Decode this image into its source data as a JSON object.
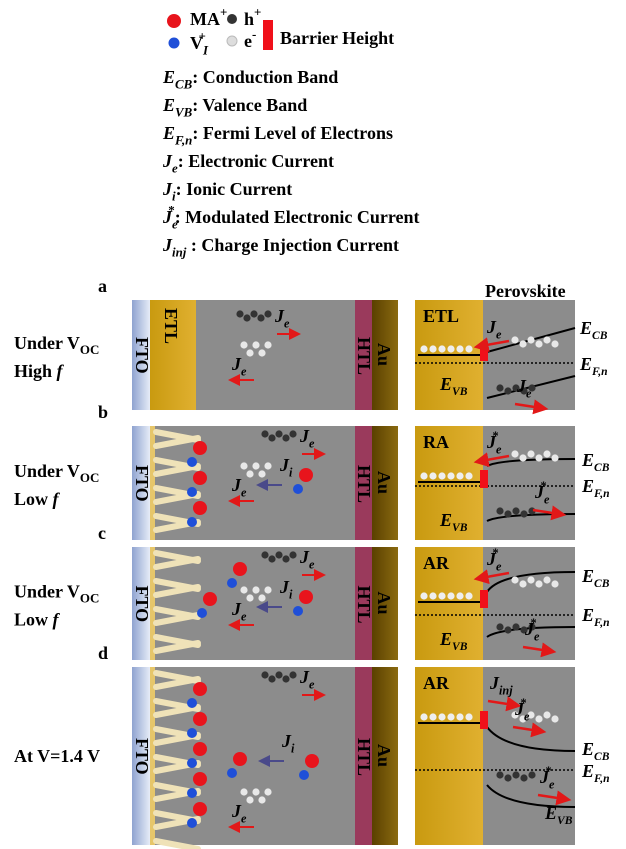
{
  "legend": {
    "ma": {
      "main": "MA",
      "sup": "+"
    },
    "vi": {
      "main": "V",
      "sub": "I",
      "sup": "+"
    },
    "hole": {
      "main": "h",
      "sup": "+"
    },
    "electron": {
      "main": "e",
      "sup": "-"
    },
    "barrier": "Barrier Height"
  },
  "definitions": [
    {
      "main": "E",
      "sub": "CB",
      "text": ": Conduction Band"
    },
    {
      "main": "E",
      "sub": "VB",
      "text": ": Valence Band"
    },
    {
      "main": "E",
      "sub": "F,n",
      "text": ": Fermi Level of Electrons"
    },
    {
      "main": "J",
      "sub": "e",
      "text": ": Electronic Current"
    },
    {
      "main": "J",
      "sub": "i",
      "text": ": Ionic Current"
    },
    {
      "main": "J",
      "sub": "e",
      "sup": "*",
      "text": ": Modulated Electronic Current"
    },
    {
      "main": "J",
      "sub": "inj",
      "text": " : Charge Injection Current"
    }
  ],
  "perovskite": "Perovskite",
  "panels": [
    {
      "letter": "a",
      "condition": {
        "line1": "Under V",
        "line1_sub": "OC",
        "line2": "High ",
        "line2_italic": "f"
      },
      "layers": {
        "fto": "FTO",
        "etl": "ETL",
        "htl": "HTL",
        "au": "Au"
      },
      "device_currents": [
        {
          "main": "J",
          "sub": "e"
        },
        {
          "main": "J",
          "sub": "e"
        }
      ],
      "contact": "ETL",
      "band_currents": [
        {
          "main": "J",
          "sub": "e"
        },
        {
          "main": "J",
          "sub": "e"
        }
      ],
      "levels": {
        "cb": {
          "main": "E",
          "sub": "CB"
        },
        "fn": {
          "main": "E",
          "sub": "F,n"
        },
        "vb": {
          "main": "E",
          "sub": "VB"
        }
      }
    },
    {
      "letter": "b",
      "condition": {
        "line1": "Under V",
        "line1_sub": "OC",
        "line2": "Low ",
        "line2_italic": "f"
      },
      "layers": {
        "fto": "FTO",
        "htl": "HTL",
        "au": "Au"
      },
      "device_currents": [
        {
          "main": "J",
          "sub": "e"
        },
        {
          "main": "J",
          "sub": "i"
        },
        {
          "main": "J",
          "sub": "e"
        }
      ],
      "contact": "RA",
      "band_currents": [
        {
          "main": "J",
          "sub": "e",
          "sup": "*"
        },
        {
          "main": "J",
          "sub": "e",
          "sup": "*"
        }
      ],
      "levels": {
        "cb": {
          "main": "E",
          "sub": "CB"
        },
        "fn": {
          "main": "E",
          "sub": "F,n"
        },
        "vb": {
          "main": "E",
          "sub": "VB"
        }
      }
    },
    {
      "letter": "c",
      "condition": {
        "line1": "Under V",
        "line1_sub": "OC",
        "line2": "Low ",
        "line2_italic": "f"
      },
      "layers": {
        "fto": "FTO",
        "htl": "HTL",
        "au": "Au"
      },
      "device_currents": [
        {
          "main": "J",
          "sub": "e"
        },
        {
          "main": "J",
          "sub": "i"
        },
        {
          "main": "J",
          "sub": "e"
        }
      ],
      "contact": "AR",
      "band_currents": [
        {
          "main": "J",
          "sub": "e",
          "sup": "*"
        },
        {
          "main": "J",
          "sub": "e",
          "sup": "*"
        }
      ],
      "levels": {
        "cb": {
          "main": "E",
          "sub": "CB"
        },
        "fn": {
          "main": "E",
          "sub": "F,n"
        },
        "vb": {
          "main": "E",
          "sub": "VB"
        }
      }
    },
    {
      "letter": "d",
      "condition": {
        "line1": "At V=1.4 V"
      },
      "layers": {
        "fto": "FTO",
        "htl": "HTL",
        "au": "Au"
      },
      "device_currents": [
        {
          "main": "J",
          "sub": "e"
        },
        {
          "main": "J",
          "sub": "i"
        },
        {
          "main": "J",
          "sub": "e"
        }
      ],
      "contact": "AR",
      "band_currents": [
        {
          "main": "J",
          "sub": "inj"
        },
        {
          "main": "J",
          "sub": "e",
          "sup": "*"
        },
        {
          "main": "J",
          "sub": "e",
          "sup": "*"
        }
      ],
      "levels": {
        "cb": {
          "main": "E",
          "sub": "CB"
        },
        "fn": {
          "main": "E",
          "sub": "F,n"
        },
        "vb": {
          "main": "E",
          "sub": "VB"
        }
      }
    }
  ]
}
